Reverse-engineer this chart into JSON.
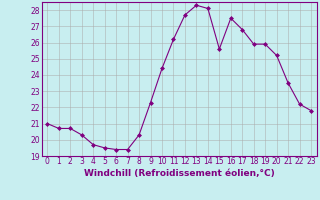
{
  "x": [
    0,
    1,
    2,
    3,
    4,
    5,
    6,
    7,
    8,
    9,
    10,
    11,
    12,
    13,
    14,
    15,
    16,
    17,
    18,
    19,
    20,
    21,
    22,
    23
  ],
  "y": [
    21.0,
    20.7,
    20.7,
    20.3,
    19.7,
    19.5,
    19.4,
    19.4,
    20.3,
    22.3,
    24.4,
    26.2,
    27.7,
    28.3,
    28.1,
    25.6,
    27.5,
    26.8,
    25.9,
    25.9,
    25.2,
    23.5,
    22.2,
    21.8
  ],
  "line_color": "#800080",
  "marker": "D",
  "marker_size": 2,
  "line_width": 0.8,
  "bg_color": "#c8eef0",
  "grid_color": "#aaaaaa",
  "xlabel": "Windchill (Refroidissement éolien,°C)",
  "ylabel": "",
  "xlim": [
    -0.5,
    23.5
  ],
  "ylim": [
    19,
    28.5
  ],
  "yticks": [
    19,
    20,
    21,
    22,
    23,
    24,
    25,
    26,
    27,
    28
  ],
  "xticks": [
    0,
    1,
    2,
    3,
    4,
    5,
    6,
    7,
    8,
    9,
    10,
    11,
    12,
    13,
    14,
    15,
    16,
    17,
    18,
    19,
    20,
    21,
    22,
    23
  ],
  "tick_label_fontsize": 5.5,
  "xlabel_fontsize": 6.5,
  "tick_color": "#800080",
  "label_color": "#800080",
  "spine_color": "#800080"
}
